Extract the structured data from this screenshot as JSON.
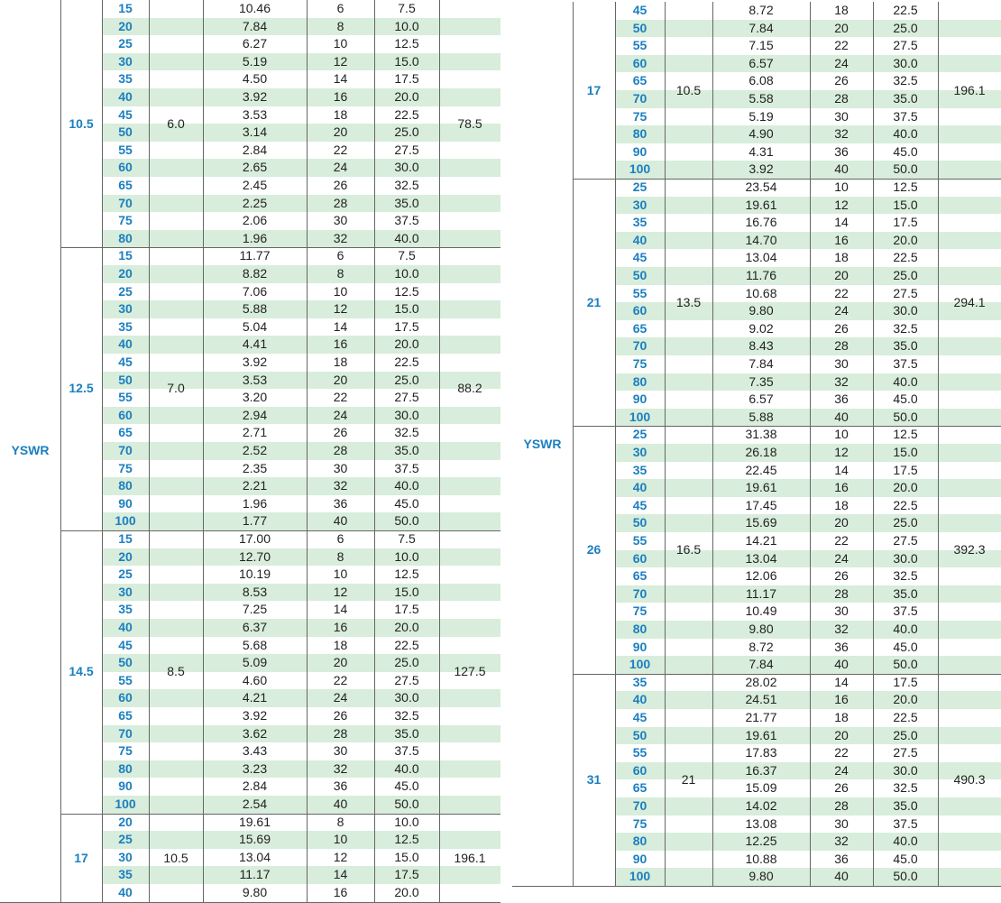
{
  "tables": [
    {
      "model": "YSWR",
      "groups": [
        {
          "size": "10.5",
          "col3": "6.0",
          "col7": "78.5",
          "rows": [
            [
              "15",
              "10.46",
              "6",
              "7.5"
            ],
            [
              "20",
              "7.84",
              "8",
              "10.0"
            ],
            [
              "25",
              "6.27",
              "10",
              "12.5"
            ],
            [
              "30",
              "5.19",
              "12",
              "15.0"
            ],
            [
              "35",
              "4.50",
              "14",
              "17.5"
            ],
            [
              "40",
              "3.92",
              "16",
              "20.0"
            ],
            [
              "45",
              "3.53",
              "18",
              "22.5"
            ],
            [
              "50",
              "3.14",
              "20",
              "25.0"
            ],
            [
              "55",
              "2.84",
              "22",
              "27.5"
            ],
            [
              "60",
              "2.65",
              "24",
              "30.0"
            ],
            [
              "65",
              "2.45",
              "26",
              "32.5"
            ],
            [
              "70",
              "2.25",
              "28",
              "35.0"
            ],
            [
              "75",
              "2.06",
              "30",
              "37.5"
            ],
            [
              "80",
              "1.96",
              "32",
              "40.0"
            ]
          ]
        },
        {
          "size": "12.5",
          "col3": "7.0",
          "col7": "88.2",
          "rows": [
            [
              "15",
              "11.77",
              "6",
              "7.5"
            ],
            [
              "20",
              "8.82",
              "8",
              "10.0"
            ],
            [
              "25",
              "7.06",
              "10",
              "12.5"
            ],
            [
              "30",
              "5.88",
              "12",
              "15.0"
            ],
            [
              "35",
              "5.04",
              "14",
              "17.5"
            ],
            [
              "40",
              "4.41",
              "16",
              "20.0"
            ],
            [
              "45",
              "3.92",
              "18",
              "22.5"
            ],
            [
              "50",
              "3.53",
              "20",
              "25.0"
            ],
            [
              "55",
              "3.20",
              "22",
              "27.5"
            ],
            [
              "60",
              "2.94",
              "24",
              "30.0"
            ],
            [
              "65",
              "2.71",
              "26",
              "32.5"
            ],
            [
              "70",
              "2.52",
              "28",
              "35.0"
            ],
            [
              "75",
              "2.35",
              "30",
              "37.5"
            ],
            [
              "80",
              "2.21",
              "32",
              "40.0"
            ],
            [
              "90",
              "1.96",
              "36",
              "45.0"
            ],
            [
              "100",
              "1.77",
              "40",
              "50.0"
            ]
          ]
        },
        {
          "size": "14.5",
          "col3": "8.5",
          "col7": "127.5",
          "rows": [
            [
              "15",
              "17.00",
              "6",
              "7.5"
            ],
            [
              "20",
              "12.70",
              "8",
              "10.0"
            ],
            [
              "25",
              "10.19",
              "10",
              "12.5"
            ],
            [
              "30",
              "8.53",
              "12",
              "15.0"
            ],
            [
              "35",
              "7.25",
              "14",
              "17.5"
            ],
            [
              "40",
              "6.37",
              "16",
              "20.0"
            ],
            [
              "45",
              "5.68",
              "18",
              "22.5"
            ],
            [
              "50",
              "5.09",
              "20",
              "25.0"
            ],
            [
              "55",
              "4.60",
              "22",
              "27.5"
            ],
            [
              "60",
              "4.21",
              "24",
              "30.0"
            ],
            [
              "65",
              "3.92",
              "26",
              "32.5"
            ],
            [
              "70",
              "3.62",
              "28",
              "35.0"
            ],
            [
              "75",
              "3.43",
              "30",
              "37.5"
            ],
            [
              "80",
              "3.23",
              "32",
              "40.0"
            ],
            [
              "90",
              "2.84",
              "36",
              "45.0"
            ],
            [
              "100",
              "2.54",
              "40",
              "50.0"
            ]
          ]
        },
        {
          "size": "17",
          "col3": "10.5",
          "col7": "196.1",
          "rows": [
            [
              "20",
              "19.61",
              "8",
              "10.0"
            ],
            [
              "25",
              "15.69",
              "10",
              "12.5"
            ],
            [
              "30",
              "13.04",
              "12",
              "15.0"
            ],
            [
              "35",
              "11.17",
              "14",
              "17.5"
            ],
            [
              "40",
              "9.80",
              "16",
              "20.0"
            ]
          ]
        }
      ]
    },
    {
      "model": "YSWR",
      "groups": [
        {
          "size": "17",
          "col3": "10.5",
          "col7": "196.1",
          "rows": [
            [
              "45",
              "8.72",
              "18",
              "22.5"
            ],
            [
              "50",
              "7.84",
              "20",
              "25.0"
            ],
            [
              "55",
              "7.15",
              "22",
              "27.5"
            ],
            [
              "60",
              "6.57",
              "24",
              "30.0"
            ],
            [
              "65",
              "6.08",
              "26",
              "32.5"
            ],
            [
              "70",
              "5.58",
              "28",
              "35.0"
            ],
            [
              "75",
              "5.19",
              "30",
              "37.5"
            ],
            [
              "80",
              "4.90",
              "32",
              "40.0"
            ],
            [
              "90",
              "4.31",
              "36",
              "45.0"
            ],
            [
              "100",
              "3.92",
              "40",
              "50.0"
            ]
          ]
        },
        {
          "size": "21",
          "col3": "13.5",
          "col7": "294.1",
          "rows": [
            [
              "25",
              "23.54",
              "10",
              "12.5"
            ],
            [
              "30",
              "19.61",
              "12",
              "15.0"
            ],
            [
              "35",
              "16.76",
              "14",
              "17.5"
            ],
            [
              "40",
              "14.70",
              "16",
              "20.0"
            ],
            [
              "45",
              "13.04",
              "18",
              "22.5"
            ],
            [
              "50",
              "11.76",
              "20",
              "25.0"
            ],
            [
              "55",
              "10.68",
              "22",
              "27.5"
            ],
            [
              "60",
              "9.80",
              "24",
              "30.0"
            ],
            [
              "65",
              "9.02",
              "26",
              "32.5"
            ],
            [
              "70",
              "8.43",
              "28",
              "35.0"
            ],
            [
              "75",
              "7.84",
              "30",
              "37.5"
            ],
            [
              "80",
              "7.35",
              "32",
              "40.0"
            ],
            [
              "90",
              "6.57",
              "36",
              "45.0"
            ],
            [
              "100",
              "5.88",
              "40",
              "50.0"
            ]
          ]
        },
        {
          "size": "26",
          "col3": "16.5",
          "col7": "392.3",
          "rows": [
            [
              "25",
              "31.38",
              "10",
              "12.5"
            ],
            [
              "30",
              "26.18",
              "12",
              "15.0"
            ],
            [
              "35",
              "22.45",
              "14",
              "17.5"
            ],
            [
              "40",
              "19.61",
              "16",
              "20.0"
            ],
            [
              "45",
              "17.45",
              "18",
              "22.5"
            ],
            [
              "50",
              "15.69",
              "20",
              "25.0"
            ],
            [
              "55",
              "14.21",
              "22",
              "27.5"
            ],
            [
              "60",
              "13.04",
              "24",
              "30.0"
            ],
            [
              "65",
              "12.06",
              "26",
              "32.5"
            ],
            [
              "70",
              "11.17",
              "28",
              "35.0"
            ],
            [
              "75",
              "10.49",
              "30",
              "37.5"
            ],
            [
              "80",
              "9.80",
              "32",
              "40.0"
            ],
            [
              "90",
              "8.72",
              "36",
              "45.0"
            ],
            [
              "100",
              "7.84",
              "40",
              "50.0"
            ]
          ]
        },
        {
          "size": "31",
          "col3": "21",
          "col7": "490.3",
          "rows": [
            [
              "35",
              "28.02",
              "14",
              "17.5"
            ],
            [
              "40",
              "24.51",
              "16",
              "20.0"
            ],
            [
              "45",
              "21.77",
              "18",
              "22.5"
            ],
            [
              "50",
              "19.61",
              "20",
              "25.0"
            ],
            [
              "55",
              "17.83",
              "22",
              "27.5"
            ],
            [
              "60",
              "16.37",
              "24",
              "30.0"
            ],
            [
              "65",
              "15.09",
              "26",
              "32.5"
            ],
            [
              "70",
              "14.02",
              "28",
              "35.0"
            ],
            [
              "75",
              "13.08",
              "30",
              "37.5"
            ],
            [
              "80",
              "12.25",
              "32",
              "40.0"
            ],
            [
              "90",
              "10.88",
              "36",
              "45.0"
            ],
            [
              "100",
              "9.80",
              "40",
              "50.0"
            ]
          ]
        }
      ]
    }
  ]
}
